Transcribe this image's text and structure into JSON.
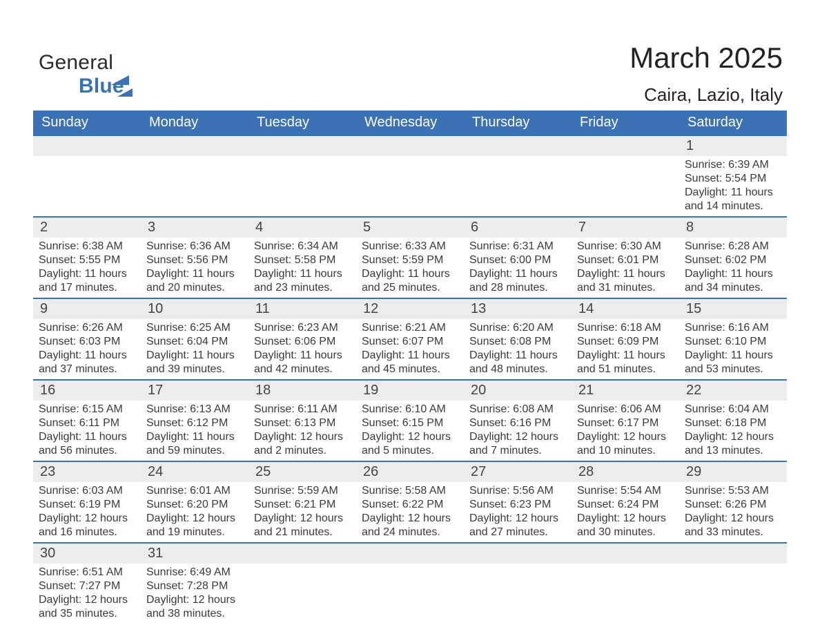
{
  "brand": {
    "part1": "General",
    "part2": "Blue"
  },
  "title": "March 2025",
  "subtitle": "Caira, Lazio, Italy",
  "colors": {
    "header_bg": "#3a72b5",
    "daybar_bg": "#ececec",
    "daybar_border": "#3a72b5",
    "text": "#3a3a3a",
    "page_bg": "#ffffff"
  },
  "weekday_labels": [
    "Sunday",
    "Monday",
    "Tuesday",
    "Wednesday",
    "Thursday",
    "Friday",
    "Saturday"
  ],
  "weeks": [
    [
      {
        "empty": true
      },
      {
        "empty": true
      },
      {
        "empty": true
      },
      {
        "empty": true
      },
      {
        "empty": true
      },
      {
        "empty": true
      },
      {
        "day": "1",
        "sunrise": "Sunrise: 6:39 AM",
        "sunset": "Sunset: 5:54 PM",
        "dl1": "Daylight: 11 hours",
        "dl2": "and 14 minutes."
      }
    ],
    [
      {
        "day": "2",
        "sunrise": "Sunrise: 6:38 AM",
        "sunset": "Sunset: 5:55 PM",
        "dl1": "Daylight: 11 hours",
        "dl2": "and 17 minutes."
      },
      {
        "day": "3",
        "sunrise": "Sunrise: 6:36 AM",
        "sunset": "Sunset: 5:56 PM",
        "dl1": "Daylight: 11 hours",
        "dl2": "and 20 minutes."
      },
      {
        "day": "4",
        "sunrise": "Sunrise: 6:34 AM",
        "sunset": "Sunset: 5:58 PM",
        "dl1": "Daylight: 11 hours",
        "dl2": "and 23 minutes."
      },
      {
        "day": "5",
        "sunrise": "Sunrise: 6:33 AM",
        "sunset": "Sunset: 5:59 PM",
        "dl1": "Daylight: 11 hours",
        "dl2": "and 25 minutes."
      },
      {
        "day": "6",
        "sunrise": "Sunrise: 6:31 AM",
        "sunset": "Sunset: 6:00 PM",
        "dl1": "Daylight: 11 hours",
        "dl2": "and 28 minutes."
      },
      {
        "day": "7",
        "sunrise": "Sunrise: 6:30 AM",
        "sunset": "Sunset: 6:01 PM",
        "dl1": "Daylight: 11 hours",
        "dl2": "and 31 minutes."
      },
      {
        "day": "8",
        "sunrise": "Sunrise: 6:28 AM",
        "sunset": "Sunset: 6:02 PM",
        "dl1": "Daylight: 11 hours",
        "dl2": "and 34 minutes."
      }
    ],
    [
      {
        "day": "9",
        "sunrise": "Sunrise: 6:26 AM",
        "sunset": "Sunset: 6:03 PM",
        "dl1": "Daylight: 11 hours",
        "dl2": "and 37 minutes."
      },
      {
        "day": "10",
        "sunrise": "Sunrise: 6:25 AM",
        "sunset": "Sunset: 6:04 PM",
        "dl1": "Daylight: 11 hours",
        "dl2": "and 39 minutes."
      },
      {
        "day": "11",
        "sunrise": "Sunrise: 6:23 AM",
        "sunset": "Sunset: 6:06 PM",
        "dl1": "Daylight: 11 hours",
        "dl2": "and 42 minutes."
      },
      {
        "day": "12",
        "sunrise": "Sunrise: 6:21 AM",
        "sunset": "Sunset: 6:07 PM",
        "dl1": "Daylight: 11 hours",
        "dl2": "and 45 minutes."
      },
      {
        "day": "13",
        "sunrise": "Sunrise: 6:20 AM",
        "sunset": "Sunset: 6:08 PM",
        "dl1": "Daylight: 11 hours",
        "dl2": "and 48 minutes."
      },
      {
        "day": "14",
        "sunrise": "Sunrise: 6:18 AM",
        "sunset": "Sunset: 6:09 PM",
        "dl1": "Daylight: 11 hours",
        "dl2": "and 51 minutes."
      },
      {
        "day": "15",
        "sunrise": "Sunrise: 6:16 AM",
        "sunset": "Sunset: 6:10 PM",
        "dl1": "Daylight: 11 hours",
        "dl2": "and 53 minutes."
      }
    ],
    [
      {
        "day": "16",
        "sunrise": "Sunrise: 6:15 AM",
        "sunset": "Sunset: 6:11 PM",
        "dl1": "Daylight: 11 hours",
        "dl2": "and 56 minutes."
      },
      {
        "day": "17",
        "sunrise": "Sunrise: 6:13 AM",
        "sunset": "Sunset: 6:12 PM",
        "dl1": "Daylight: 11 hours",
        "dl2": "and 59 minutes."
      },
      {
        "day": "18",
        "sunrise": "Sunrise: 6:11 AM",
        "sunset": "Sunset: 6:13 PM",
        "dl1": "Daylight: 12 hours",
        "dl2": "and 2 minutes."
      },
      {
        "day": "19",
        "sunrise": "Sunrise: 6:10 AM",
        "sunset": "Sunset: 6:15 PM",
        "dl1": "Daylight: 12 hours",
        "dl2": "and 5 minutes."
      },
      {
        "day": "20",
        "sunrise": "Sunrise: 6:08 AM",
        "sunset": "Sunset: 6:16 PM",
        "dl1": "Daylight: 12 hours",
        "dl2": "and 7 minutes."
      },
      {
        "day": "21",
        "sunrise": "Sunrise: 6:06 AM",
        "sunset": "Sunset: 6:17 PM",
        "dl1": "Daylight: 12 hours",
        "dl2": "and 10 minutes."
      },
      {
        "day": "22",
        "sunrise": "Sunrise: 6:04 AM",
        "sunset": "Sunset: 6:18 PM",
        "dl1": "Daylight: 12 hours",
        "dl2": "and 13 minutes."
      }
    ],
    [
      {
        "day": "23",
        "sunrise": "Sunrise: 6:03 AM",
        "sunset": "Sunset: 6:19 PM",
        "dl1": "Daylight: 12 hours",
        "dl2": "and 16 minutes."
      },
      {
        "day": "24",
        "sunrise": "Sunrise: 6:01 AM",
        "sunset": "Sunset: 6:20 PM",
        "dl1": "Daylight: 12 hours",
        "dl2": "and 19 minutes."
      },
      {
        "day": "25",
        "sunrise": "Sunrise: 5:59 AM",
        "sunset": "Sunset: 6:21 PM",
        "dl1": "Daylight: 12 hours",
        "dl2": "and 21 minutes."
      },
      {
        "day": "26",
        "sunrise": "Sunrise: 5:58 AM",
        "sunset": "Sunset: 6:22 PM",
        "dl1": "Daylight: 12 hours",
        "dl2": "and 24 minutes."
      },
      {
        "day": "27",
        "sunrise": "Sunrise: 5:56 AM",
        "sunset": "Sunset: 6:23 PM",
        "dl1": "Daylight: 12 hours",
        "dl2": "and 27 minutes."
      },
      {
        "day": "28",
        "sunrise": "Sunrise: 5:54 AM",
        "sunset": "Sunset: 6:24 PM",
        "dl1": "Daylight: 12 hours",
        "dl2": "and 30 minutes."
      },
      {
        "day": "29",
        "sunrise": "Sunrise: 5:53 AM",
        "sunset": "Sunset: 6:26 PM",
        "dl1": "Daylight: 12 hours",
        "dl2": "and 33 minutes."
      }
    ],
    [
      {
        "day": "30",
        "sunrise": "Sunrise: 6:51 AM",
        "sunset": "Sunset: 7:27 PM",
        "dl1": "Daylight: 12 hours",
        "dl2": "and 35 minutes."
      },
      {
        "day": "31",
        "sunrise": "Sunrise: 6:49 AM",
        "sunset": "Sunset: 7:28 PM",
        "dl1": "Daylight: 12 hours",
        "dl2": "and 38 minutes."
      },
      {
        "empty": true
      },
      {
        "empty": true
      },
      {
        "empty": true
      },
      {
        "empty": true
      },
      {
        "empty": true
      }
    ]
  ]
}
